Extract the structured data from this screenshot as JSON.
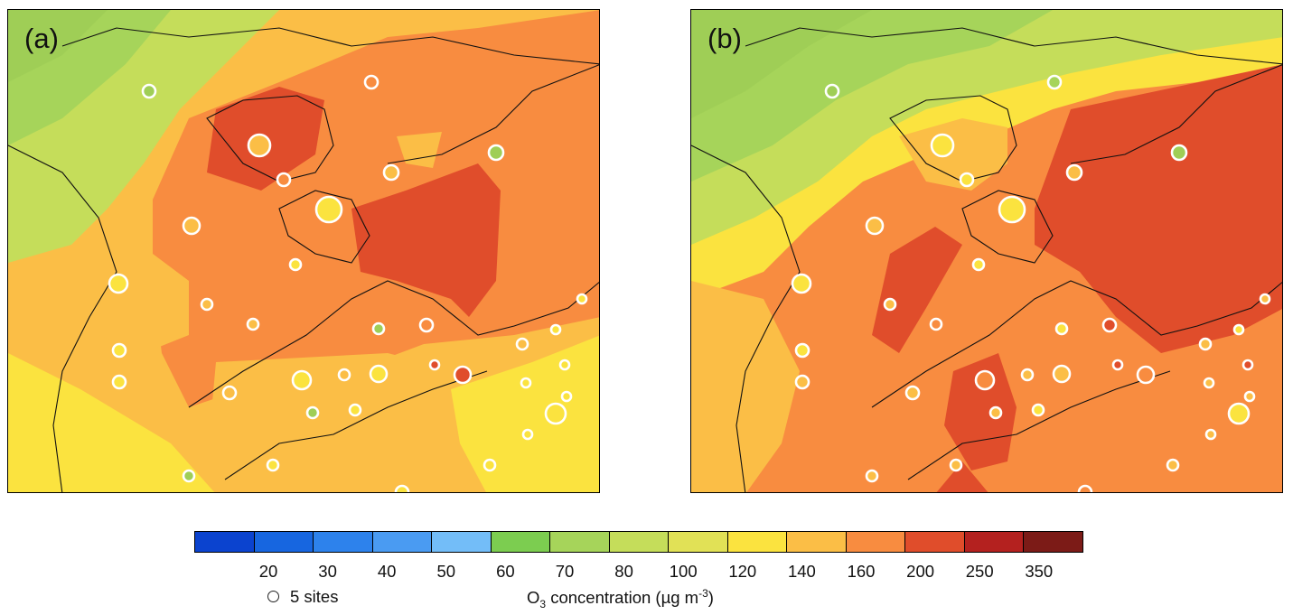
{
  "panels": [
    {
      "label": "(a)"
    },
    {
      "label": "(b)"
    }
  ],
  "colorbar": {
    "colors": [
      "#0b43cf",
      "#1766e0",
      "#2d82ec",
      "#4a9bf2",
      "#73bdf8",
      "#7ccd50",
      "#a6d45a",
      "#c5dd5a",
      "#e1e156",
      "#fbe33f",
      "#fbbe46",
      "#f88c40",
      "#e04d2b",
      "#b4211f",
      "#7c1b17"
    ],
    "ticks": [
      "20",
      "30",
      "40",
      "50",
      "60",
      "70",
      "80",
      "100",
      "120",
      "140",
      "160",
      "200",
      "250",
      "350"
    ],
    "title_prefix": "O",
    "title_sub": "3",
    "title_mid": " concentration (µg m",
    "title_sup": "-3",
    "title_suffix": ")"
  },
  "legend": {
    "sites_label": "5 sites"
  },
  "colors": {
    "green": "#9fce56",
    "yellowgreen": "#c5dd5a",
    "yellow": "#fbe33f",
    "lightorange": "#fbbe46",
    "orange": "#f88c40",
    "redorange": "#e04d2b",
    "boundary": "#111111"
  }
}
